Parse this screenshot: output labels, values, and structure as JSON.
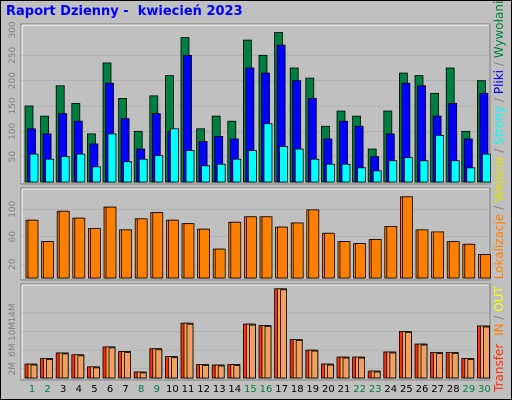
{
  "title": "Raport Dzienny -  kwiecień 2023",
  "right_legend": {
    "transfer": "Transfer",
    "in": "IN",
    "slash1": "/",
    "out": "OUT",
    "lokalizacje": "Lokalizacje",
    "slash2": "/",
    "wejscia": "Wejścia",
    "slash3": "/",
    "strony": "Strony",
    "slash4": "/",
    "pliki": "Pliki",
    "slash5": "/",
    "wywolania": "Wywołania"
  },
  "colors": {
    "wywolania": "#008040",
    "pliki": "#0000ff",
    "strony": "#00ffff",
    "wejscia": "#ff8000",
    "lokalizacje": "#ff8000",
    "transfer": "#ff3000",
    "in": "#ff8000",
    "out": "#ffff00",
    "weekend_day": "#008040",
    "weekday_day": "#000000"
  },
  "chart_data": [
    {
      "type": "bar",
      "categories": [
        "1",
        "2",
        "3",
        "4",
        "5",
        "6",
        "7",
        "8",
        "9",
        "10",
        "11",
        "12",
        "13",
        "14",
        "15",
        "16",
        "17",
        "18",
        "19",
        "20",
        "21",
        "22",
        "23",
        "24",
        "25",
        "26",
        "27",
        "28",
        "29",
        "30"
      ],
      "ylim": [
        0,
        300
      ],
      "yticks": [
        "300",
        "250",
        "200",
        "150",
        "100",
        "50"
      ],
      "series": [
        {
          "name": "Wywołania",
          "values": [
            150,
            130,
            190,
            155,
            95,
            235,
            165,
            100,
            170,
            210,
            285,
            105,
            130,
            120,
            280,
            250,
            295,
            225,
            205,
            110,
            140,
            130,
            65,
            140,
            215,
            210,
            175,
            225,
            100,
            200
          ]
        },
        {
          "name": "Pliki",
          "values": [
            105,
            95,
            135,
            120,
            75,
            195,
            125,
            65,
            135,
            100,
            250,
            80,
            90,
            85,
            225,
            215,
            270,
            200,
            165,
            85,
            120,
            110,
            50,
            95,
            195,
            190,
            130,
            155,
            85,
            175
          ]
        },
        {
          "name": "Strony",
          "values": [
            55,
            45,
            50,
            55,
            30,
            95,
            40,
            45,
            52,
            105,
            62,
            32,
            35,
            45,
            62,
            115,
            70,
            65,
            45,
            35,
            35,
            28,
            22,
            42,
            48,
            42,
            92,
            42,
            28,
            55
          ]
        }
      ]
    },
    {
      "type": "bar",
      "categories": [
        "1",
        "2",
        "3",
        "4",
        "5",
        "6",
        "7",
        "8",
        "9",
        "10",
        "11",
        "12",
        "13",
        "14",
        "15",
        "16",
        "17",
        "18",
        "19",
        "20",
        "21",
        "22",
        "23",
        "24",
        "25",
        "26",
        "27",
        "28",
        "29",
        "30"
      ],
      "yticks": [
        "100",
        "60",
        "20"
      ],
      "series": [
        {
          "name": "Wejścia",
          "values": [
            84,
            53,
            97,
            87,
            72,
            103,
            70,
            86,
            95,
            84,
            79,
            71,
            42,
            81,
            89,
            89,
            74,
            80,
            99,
            65,
            53,
            50,
            56,
            75,
            118,
            70,
            67,
            53,
            49,
            34
          ]
        },
        {
          "name": "Lokalizacje",
          "values": [
            84,
            53,
            97,
            87,
            72,
            103,
            70,
            86,
            95,
            84,
            79,
            71,
            42,
            81,
            89,
            89,
            74,
            80,
            99,
            65,
            53,
            50,
            56,
            75,
            118,
            70,
            67,
            53,
            49,
            34
          ]
        }
      ]
    },
    {
      "type": "bar",
      "categories": [
        "1",
        "2",
        "3",
        "4",
        "5",
        "6",
        "7",
        "8",
        "9",
        "10",
        "11",
        "12",
        "13",
        "14",
        "15",
        "16",
        "17",
        "18",
        "19",
        "20",
        "21",
        "22",
        "23",
        "24",
        "25",
        "26",
        "27",
        "28",
        "29",
        "30"
      ],
      "yticks": [
        "14M",
        "10M",
        "6M",
        "2M"
      ],
      "series": [
        {
          "name": "IN",
          "values": [
            3.0,
            4.2,
            5.4,
            5.0,
            2.4,
            6.7,
            5.7,
            1.3,
            6.3,
            4.6,
            11.8,
            2.9,
            2.8,
            2.9,
            11.6,
            11.3,
            19.2,
            8.3,
            6.0,
            3.0,
            4.5,
            4.5,
            1.5,
            5.6,
            10.0,
            7.3,
            5.5,
            5.5,
            4.2,
            11.2
          ]
        },
        {
          "name": "OUT",
          "values": [
            3.0,
            4.2,
            5.4,
            5.0,
            2.4,
            6.7,
            5.7,
            1.3,
            6.3,
            4.6,
            11.8,
            2.9,
            2.8,
            2.9,
            11.6,
            11.3,
            19.2,
            8.3,
            6.0,
            3.0,
            4.5,
            4.5,
            1.5,
            5.6,
            10.0,
            7.3,
            5.5,
            5.5,
            4.2,
            11.2
          ]
        },
        {
          "name": "Transfer",
          "values": [
            3.0,
            4.2,
            5.4,
            5.0,
            2.4,
            6.7,
            5.7,
            1.3,
            6.3,
            4.6,
            11.8,
            2.9,
            2.8,
            2.9,
            11.6,
            11.3,
            19.2,
            8.3,
            6.0,
            3.0,
            4.5,
            4.5,
            1.5,
            5.6,
            10.0,
            7.3,
            5.5,
            5.5,
            4.2,
            11.2
          ]
        }
      ],
      "weekend_days": [
        "1",
        "2",
        "8",
        "9",
        "15",
        "16",
        "22",
        "23",
        "29",
        "30"
      ]
    }
  ]
}
